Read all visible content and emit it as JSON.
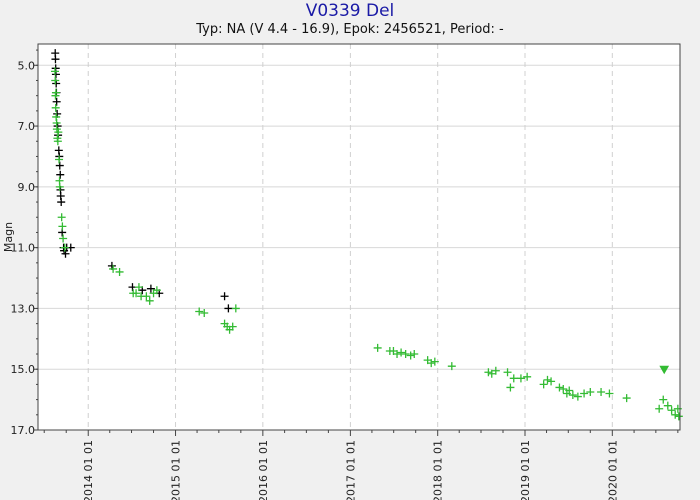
{
  "chart_data": {
    "type": "scatter",
    "title": "V0339 Del",
    "subtitle": "Typ: NA (V 4.4 - 16.9), Epok: 2456521, Period: -",
    "xlabel": "",
    "ylabel": "Magn",
    "y_inverted": true,
    "ylim": [
      4.3,
      17.0
    ],
    "yticks": [
      5.0,
      7.0,
      9.0,
      11.0,
      13.0,
      15.0,
      17.0
    ],
    "xlim": [
      "2013-06-05",
      "2020-10-10"
    ],
    "xticks": [
      "2014 01 01",
      "2015 01 01",
      "2016 01 01",
      "2017 01 01",
      "2018 01 01",
      "2019 01 01",
      "2020 01 01"
    ],
    "grid": true,
    "series": [
      {
        "color": "#000000",
        "marker": "+",
        "points": [
          [
            "2013-08-16",
            4.6
          ],
          [
            "2013-08-17",
            4.8
          ],
          [
            "2013-08-18",
            5.1
          ],
          [
            "2013-08-19",
            5.3
          ],
          [
            "2013-08-20",
            5.6
          ],
          [
            "2013-08-21",
            5.9
          ],
          [
            "2013-08-22",
            6.2
          ],
          [
            "2013-08-24",
            6.6
          ],
          [
            "2013-08-26",
            7.0
          ],
          [
            "2013-08-28",
            7.3
          ],
          [
            "2013-08-31",
            7.8
          ],
          [
            "2013-09-02",
            8.0
          ],
          [
            "2013-09-04",
            8.3
          ],
          [
            "2013-09-06",
            8.6
          ],
          [
            "2013-09-07",
            9.1
          ],
          [
            "2013-09-08",
            9.3
          ],
          [
            "2013-09-10",
            9.5
          ],
          [
            "2013-09-14",
            10.5
          ],
          [
            "2013-09-20",
            11.0
          ],
          [
            "2013-09-22",
            11.1
          ],
          [
            "2013-09-28",
            11.2
          ],
          [
            "2013-10-03",
            11.0
          ],
          [
            "2013-10-20",
            11.0
          ],
          [
            "2014-04-10",
            11.6
          ],
          [
            "2014-07-05",
            12.3
          ],
          [
            "2014-08-15",
            12.4
          ],
          [
            "2014-09-20",
            12.35
          ],
          [
            "2014-10-25",
            12.5
          ],
          [
            "2015-07-25",
            12.6
          ],
          [
            "2015-08-10",
            13.0
          ]
        ]
      },
      {
        "color": "#33bb33",
        "marker": "+",
        "points": [
          [
            "2013-08-15",
            5.2
          ],
          [
            "2013-08-16",
            5.5
          ],
          [
            "2013-08-17",
            6.0
          ],
          [
            "2013-08-18",
            6.4
          ],
          [
            "2013-08-19",
            5.9
          ],
          [
            "2013-08-20",
            6.7
          ],
          [
            "2013-08-22",
            6.9
          ],
          [
            "2013-08-23",
            7.1
          ],
          [
            "2013-08-25",
            7.4
          ],
          [
            "2013-08-27",
            7.5
          ],
          [
            "2013-08-29",
            7.2
          ],
          [
            "2013-09-01",
            8.1
          ],
          [
            "2013-09-03",
            8.8
          ],
          [
            "2013-09-04",
            9.0
          ],
          [
            "2013-09-12",
            10.0
          ],
          [
            "2013-09-15",
            10.3
          ],
          [
            "2013-09-18",
            10.7
          ],
          [
            "2013-09-25",
            11.0
          ],
          [
            "2014-04-15",
            11.7
          ],
          [
            "2014-05-12",
            11.8
          ],
          [
            "2014-07-08",
            12.5
          ],
          [
            "2014-07-20",
            12.5
          ],
          [
            "2014-08-01",
            12.3
          ],
          [
            "2014-08-10",
            12.6
          ],
          [
            "2014-09-01",
            12.6
          ],
          [
            "2014-09-15",
            12.75
          ],
          [
            "2014-10-01",
            12.5
          ],
          [
            "2014-10-15",
            12.4
          ],
          [
            "2015-04-10",
            13.1
          ],
          [
            "2015-05-01",
            13.15
          ],
          [
            "2015-07-25",
            13.5
          ],
          [
            "2015-08-05",
            13.6
          ],
          [
            "2015-08-15",
            13.7
          ],
          [
            "2015-08-28",
            13.6
          ],
          [
            "2015-09-10",
            13.0
          ],
          [
            "2017-04-25",
            14.3
          ],
          [
            "2017-06-15",
            14.4
          ],
          [
            "2017-06-30",
            14.4
          ],
          [
            "2017-07-15",
            14.5
          ],
          [
            "2017-08-01",
            14.45
          ],
          [
            "2017-08-20",
            14.5
          ],
          [
            "2017-09-10",
            14.55
          ],
          [
            "2017-09-25",
            14.5
          ],
          [
            "2017-11-20",
            14.7
          ],
          [
            "2017-12-05",
            14.8
          ],
          [
            "2017-12-20",
            14.75
          ],
          [
            "2018-03-01",
            14.9
          ],
          [
            "2018-08-01",
            15.1
          ],
          [
            "2018-08-15",
            15.15
          ],
          [
            "2018-09-01",
            15.05
          ],
          [
            "2018-10-20",
            15.1
          ],
          [
            "2018-11-01",
            15.6
          ],
          [
            "2018-11-15",
            15.3
          ],
          [
            "2018-12-15",
            15.3
          ],
          [
            "2019-01-10",
            15.25
          ],
          [
            "2019-03-20",
            15.5
          ],
          [
            "2019-04-05",
            15.35
          ],
          [
            "2019-04-20",
            15.4
          ],
          [
            "2019-05-25",
            15.6
          ],
          [
            "2019-06-10",
            15.65
          ],
          [
            "2019-06-25",
            15.8
          ],
          [
            "2019-07-05",
            15.7
          ],
          [
            "2019-07-20",
            15.85
          ],
          [
            "2019-08-10",
            15.9
          ],
          [
            "2019-09-05",
            15.8
          ],
          [
            "2019-10-01",
            15.75
          ],
          [
            "2019-11-15",
            15.75
          ],
          [
            "2019-12-20",
            15.8
          ],
          [
            "2020-03-01",
            15.95
          ],
          [
            "2020-07-15",
            16.3
          ],
          [
            "2020-08-01",
            16.0
          ],
          [
            "2020-08-20",
            16.2
          ],
          [
            "2020-09-05",
            16.35
          ],
          [
            "2020-09-20",
            16.5
          ],
          [
            "2020-10-01",
            16.3
          ],
          [
            "2020-10-05",
            16.55
          ]
        ]
      },
      {
        "color": "#33bb33",
        "marker": "triangle-down",
        "points": [
          [
            "2020-08-05",
            15.0
          ]
        ]
      }
    ]
  }
}
